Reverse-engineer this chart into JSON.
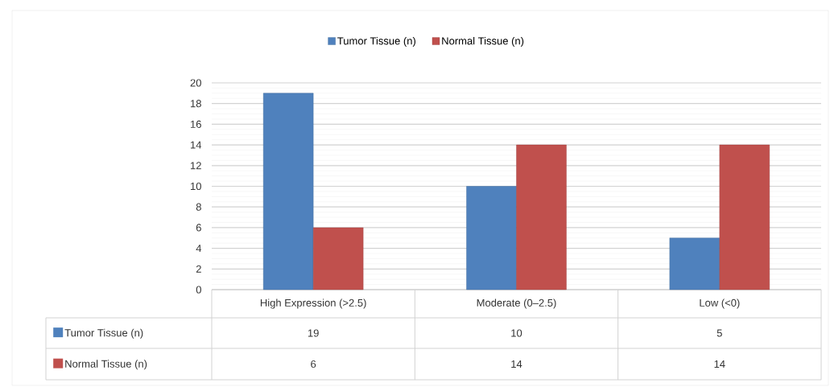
{
  "chart_data": {
    "type": "bar",
    "categories": [
      "High Expression (>2.5)",
      "Moderate (0–2.5)",
      "Low (<0)"
    ],
    "series": [
      {
        "name": "Tumor Tissue (n)",
        "color": "#4f81bd",
        "values": [
          19,
          10,
          5
        ]
      },
      {
        "name": "Normal Tissue (n)",
        "color": "#c0504d",
        "values": [
          6,
          14,
          14
        ]
      }
    ],
    "ylim": [
      0,
      20
    ],
    "yticks": [
      0,
      2,
      4,
      6,
      8,
      10,
      12,
      14,
      16,
      18,
      20
    ],
    "grid": "y",
    "legend": "top",
    "data_labels": true
  }
}
